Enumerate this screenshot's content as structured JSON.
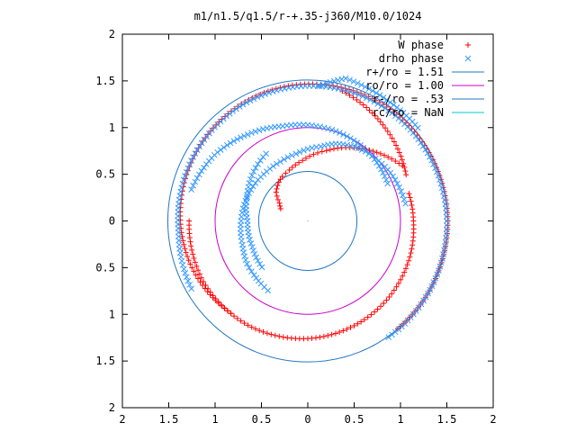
{
  "chart_data": {
    "type": "scatter",
    "title": "m1/n1.5/q1.5/r-+.35-j360/M10.0/1024",
    "xlim": [
      -2,
      2
    ],
    "ylim": [
      -2,
      2
    ],
    "x_ticks": [
      -2,
      -1.5,
      -1,
      -0.5,
      0,
      0.5,
      1,
      1.5,
      2
    ],
    "y_ticks": [
      -2,
      -1.5,
      -1,
      -0.5,
      0,
      0.5,
      1,
      1.5,
      2
    ],
    "x_tick_labels": [
      "2",
      "1.5",
      "1",
      "0.5",
      "0",
      "0.5",
      "1",
      "1.5",
      "2"
    ],
    "y_tick_labels": [
      "2",
      "1.5",
      "1",
      "0.5",
      "0",
      "0.5",
      "1",
      "1.5",
      "2"
    ],
    "grid": false,
    "legend_position": "top-right",
    "series": [
      {
        "name": "W phase",
        "marker": "plus",
        "color": "#ff0000",
        "segments": [
          {
            "r": [
              1.51,
              1.51,
              1.49,
              1.46,
              1.41,
              1.35,
              1.29
            ],
            "theta_deg": [
              -50,
              0,
              50,
              100,
              150,
              200,
              230
            ]
          },
          {
            "r": [
              1.44,
              1.3,
              1.17
            ],
            "theta_deg": [
              75,
              50,
              25
            ]
          },
          {
            "r": [
              1.13,
              1.14,
              1.18,
              1.22,
              1.26,
              1.29,
              1.3,
              1.28
            ],
            "theta_deg": [
              15,
              0,
              -30,
              -60,
              -90,
              -120,
              -150,
              -180
            ]
          },
          {
            "r": [
              1.18,
              0.95,
              0.78,
              0.65,
              0.58,
              0.55,
              0.52,
              0.46,
              0.36,
              0.32
            ],
            "theta_deg": [
              30,
              55,
              75,
              95,
              110,
              120,
              127,
              138,
              148,
              156
            ]
          }
        ]
      },
      {
        "name": "drho phase",
        "marker": "cross",
        "color": "#3399ff",
        "segments": [
          {
            "r": [
              1.52,
              1.5,
              1.47,
              1.44,
              1.42,
              1.41,
              1.4,
              1.45
            ],
            "theta_deg": [
              -55,
              0,
              50,
              100,
              135,
              160,
              185,
              210
            ]
          },
          {
            "r": [
              1.55,
              1.55,
              1.56,
              1.58,
              1.45
            ],
            "theta_deg": [
              40,
              55,
              65,
              75,
              85
            ]
          },
          {
            "r": [
              0.95,
              0.98,
              1.0,
              1.02,
              1.05,
              1.13,
              1.23,
              1.3
            ],
            "theta_deg": [
              25,
              45,
              65,
              85,
              105,
              125,
              145,
              165
            ]
          },
          {
            "r": [
              0.85,
              0.7,
              0.65,
              0.66,
              0.7
            ],
            "theta_deg": [
              122,
              160,
              180,
              205,
              225
            ]
          },
          {
            "r": [
              1.07,
              1.05,
              1.03,
              1.0,
              0.97,
              0.93,
              0.88,
              0.81,
              0.73,
              0.7,
              0.69,
              0.7,
              0.72,
              0.75,
              0.8,
              0.82,
              0.84,
              0.86
            ],
            "theta_deg": [
              10,
              20,
              30,
              40,
              50,
              60,
              70,
              80,
              100,
              115,
              130,
              155,
              180,
              200,
              215,
              225,
              233,
              240
            ]
          }
        ]
      },
      {
        "name": "r+/ro = 1.51",
        "type": "circle",
        "r": 1.51,
        "color": "#1f77c4"
      },
      {
        "name": "ro/ro = 1.00",
        "type": "circle",
        "r": 1.0,
        "color": "#cc00cc"
      },
      {
        "name": "r-/ro = .53",
        "type": "circle",
        "r": 0.53,
        "color": "#1f77c4"
      },
      {
        "name": "rc/ro = NaN",
        "type": "circle",
        "r": null,
        "color": "#00cccc"
      }
    ]
  }
}
